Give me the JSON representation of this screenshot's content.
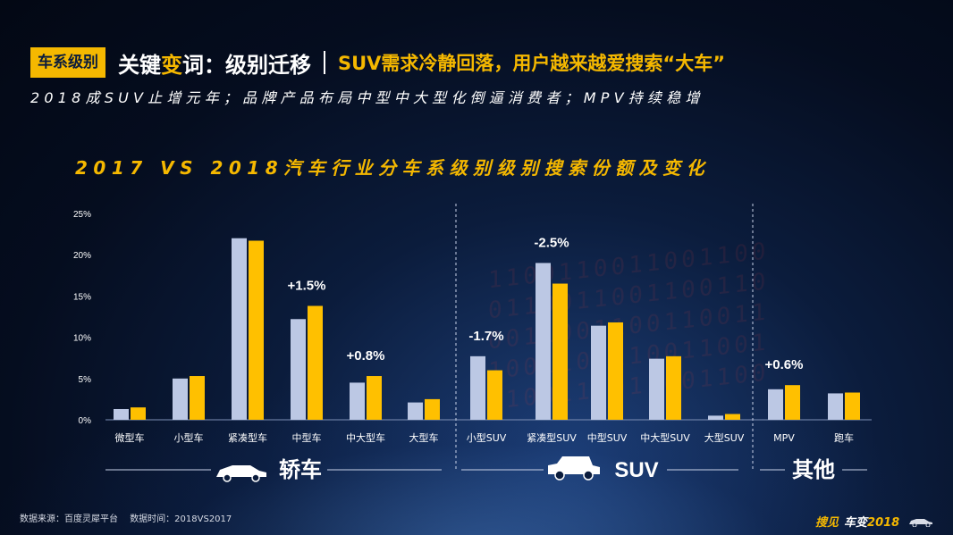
{
  "header": {
    "tag": "车系级别",
    "headline_pre": "关键",
    "headline_em": "变",
    "headline_post": "词：级别迁移",
    "headline_right": "SUV需求冷静回落，用户越来越爱搜索“大车”"
  },
  "subtitle": "2018成SUV止增元年；品牌产品布局中型中大型化倒逼消费者；MPV持续稳增",
  "chart_data": {
    "type": "bar",
    "title": "2017 VS 2018汽车行业分车系级别级别搜索份额及变化",
    "categories": [
      "微型车",
      "小型车",
      "紧凑型车",
      "中型车",
      "中大型车",
      "大型车",
      "小型SUV",
      "紧凑型SUV",
      "中型SUV",
      "中大型SUV",
      "大型SUV",
      "MPV",
      "跑车"
    ],
    "series": [
      {
        "name": "2017",
        "color": "#bcc8e4",
        "values": [
          1.3,
          5.0,
          22.0,
          12.2,
          4.5,
          2.1,
          7.7,
          19.0,
          11.4,
          7.4,
          0.5,
          3.7,
          3.2
        ]
      },
      {
        "name": "2018",
        "color": "#ffc000",
        "values": [
          1.5,
          5.3,
          21.7,
          13.8,
          5.3,
          2.5,
          6.0,
          16.5,
          11.8,
          7.7,
          0.7,
          4.2,
          3.3
        ]
      }
    ],
    "ylim": [
      0,
      25
    ],
    "yticks": [
      "0%",
      "5%",
      "10%",
      "15%",
      "20%",
      "25%"
    ],
    "annotations": [
      {
        "category_index": 3,
        "text": "+1.5%"
      },
      {
        "category_index": 4,
        "text": "+0.8%"
      },
      {
        "category_index": 6,
        "text": "-1.7%"
      },
      {
        "category_index": 7,
        "text": "-2.5%"
      },
      {
        "category_index": 11,
        "text": "+0.6%"
      }
    ],
    "groups": [
      {
        "label": "轿车",
        "icon": "sedan-car-icon",
        "from": 0,
        "to": 5
      },
      {
        "label": "SUV",
        "icon": "suv-car-icon",
        "from": 6,
        "to": 10
      },
      {
        "label": "其他",
        "icon": "",
        "from": 11,
        "to": 12
      }
    ]
  },
  "footer": {
    "source": "数据来源：百度灵犀平台",
    "time": "数据时间：2018VS2017"
  },
  "brand": {
    "part1": "搜见",
    "part2": "车变",
    "part3": "2018"
  }
}
